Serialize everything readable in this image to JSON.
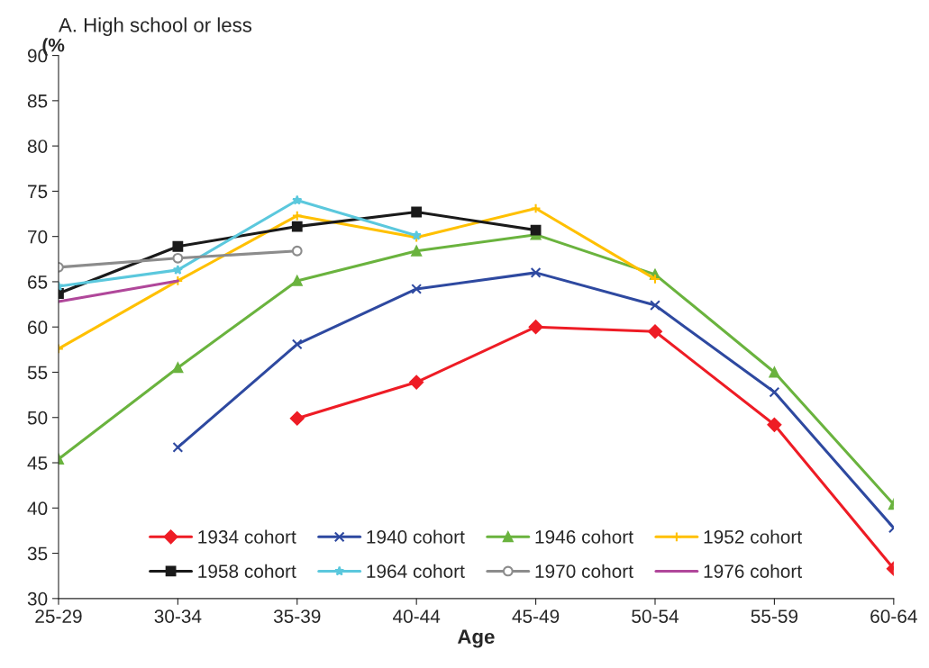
{
  "chart_data": {
    "type": "line",
    "title": "A. High school or less",
    "xlabel": "Age",
    "ylabel": "(%",
    "categories": [
      "25-29",
      "30-34",
      "35-39",
      "40-44",
      "45-49",
      "50-54",
      "55-59",
      "60-64"
    ],
    "series": [
      {
        "name": "1934 cohort",
        "color": "#ee1c25",
        "marker": "diamond",
        "values": [
          null,
          null,
          49.9,
          53.9,
          60.0,
          59.5,
          49.2,
          33.3
        ]
      },
      {
        "name": "1940 cohort",
        "color": "#2e49a0",
        "marker": "cross",
        "values": [
          null,
          46.7,
          58.1,
          64.2,
          66.0,
          62.4,
          52.8,
          37.8
        ]
      },
      {
        "name": "1946 cohort",
        "color": "#6ab33e",
        "marker": "triangle",
        "values": [
          45.4,
          55.5,
          65.1,
          68.4,
          70.2,
          65.8,
          55.0,
          40.4
        ]
      },
      {
        "name": "1952 cohort",
        "color": "#ffc000",
        "marker": "plus",
        "values": [
          57.6,
          65.1,
          72.3,
          69.9,
          73.1,
          65.3,
          null,
          null
        ]
      },
      {
        "name": "1958 cohort",
        "color": "#1a1a1a",
        "marker": "square",
        "values": [
          63.7,
          68.9,
          71.1,
          72.7,
          70.7,
          null,
          null,
          null
        ]
      },
      {
        "name": "1964 cohort",
        "color": "#5bc8dd",
        "marker": "star",
        "values": [
          64.5,
          66.3,
          74.0,
          70.1,
          null,
          null,
          null,
          null
        ]
      },
      {
        "name": "1970 cohort",
        "color": "#8c8c8c",
        "marker": "circle",
        "values": [
          66.6,
          67.6,
          68.4,
          null,
          null,
          null,
          null,
          null
        ]
      },
      {
        "name": "1976 cohort",
        "color": "#b0479a",
        "marker": "none",
        "values": [
          62.8,
          65.1,
          null,
          null,
          null,
          null,
          null,
          null
        ]
      }
    ],
    "ylim": [
      30,
      90
    ],
    "yticks": [
      30,
      35,
      40,
      45,
      50,
      55,
      60,
      65,
      70,
      75,
      80,
      85,
      90
    ],
    "grid": false,
    "legend": "bottom"
  }
}
